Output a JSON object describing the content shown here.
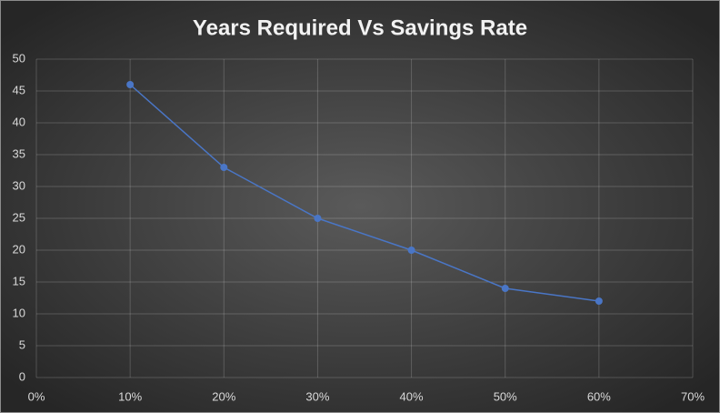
{
  "chart_data": {
    "type": "line",
    "title": "Years Required Vs Savings Rate",
    "x": [
      10,
      20,
      30,
      40,
      50,
      60
    ],
    "series": [
      {
        "name": "Years Required",
        "color": "#4a76c6",
        "values": [
          46,
          33,
          25,
          20,
          14,
          12
        ]
      }
    ],
    "xlim": [
      0,
      70
    ],
    "xticks": [
      {
        "value": 0,
        "label": "0%"
      },
      {
        "value": 10,
        "label": "10%"
      },
      {
        "value": 20,
        "label": "20%"
      },
      {
        "value": 30,
        "label": "30%"
      },
      {
        "value": 40,
        "label": "40%"
      },
      {
        "value": 50,
        "label": "50%"
      },
      {
        "value": 60,
        "label": "60%"
      },
      {
        "value": 70,
        "label": "70%"
      }
    ],
    "ylim": [
      0,
      50
    ],
    "yticks": [
      0,
      5,
      10,
      15,
      20,
      25,
      30,
      35,
      40,
      45,
      50
    ],
    "grid": true
  }
}
